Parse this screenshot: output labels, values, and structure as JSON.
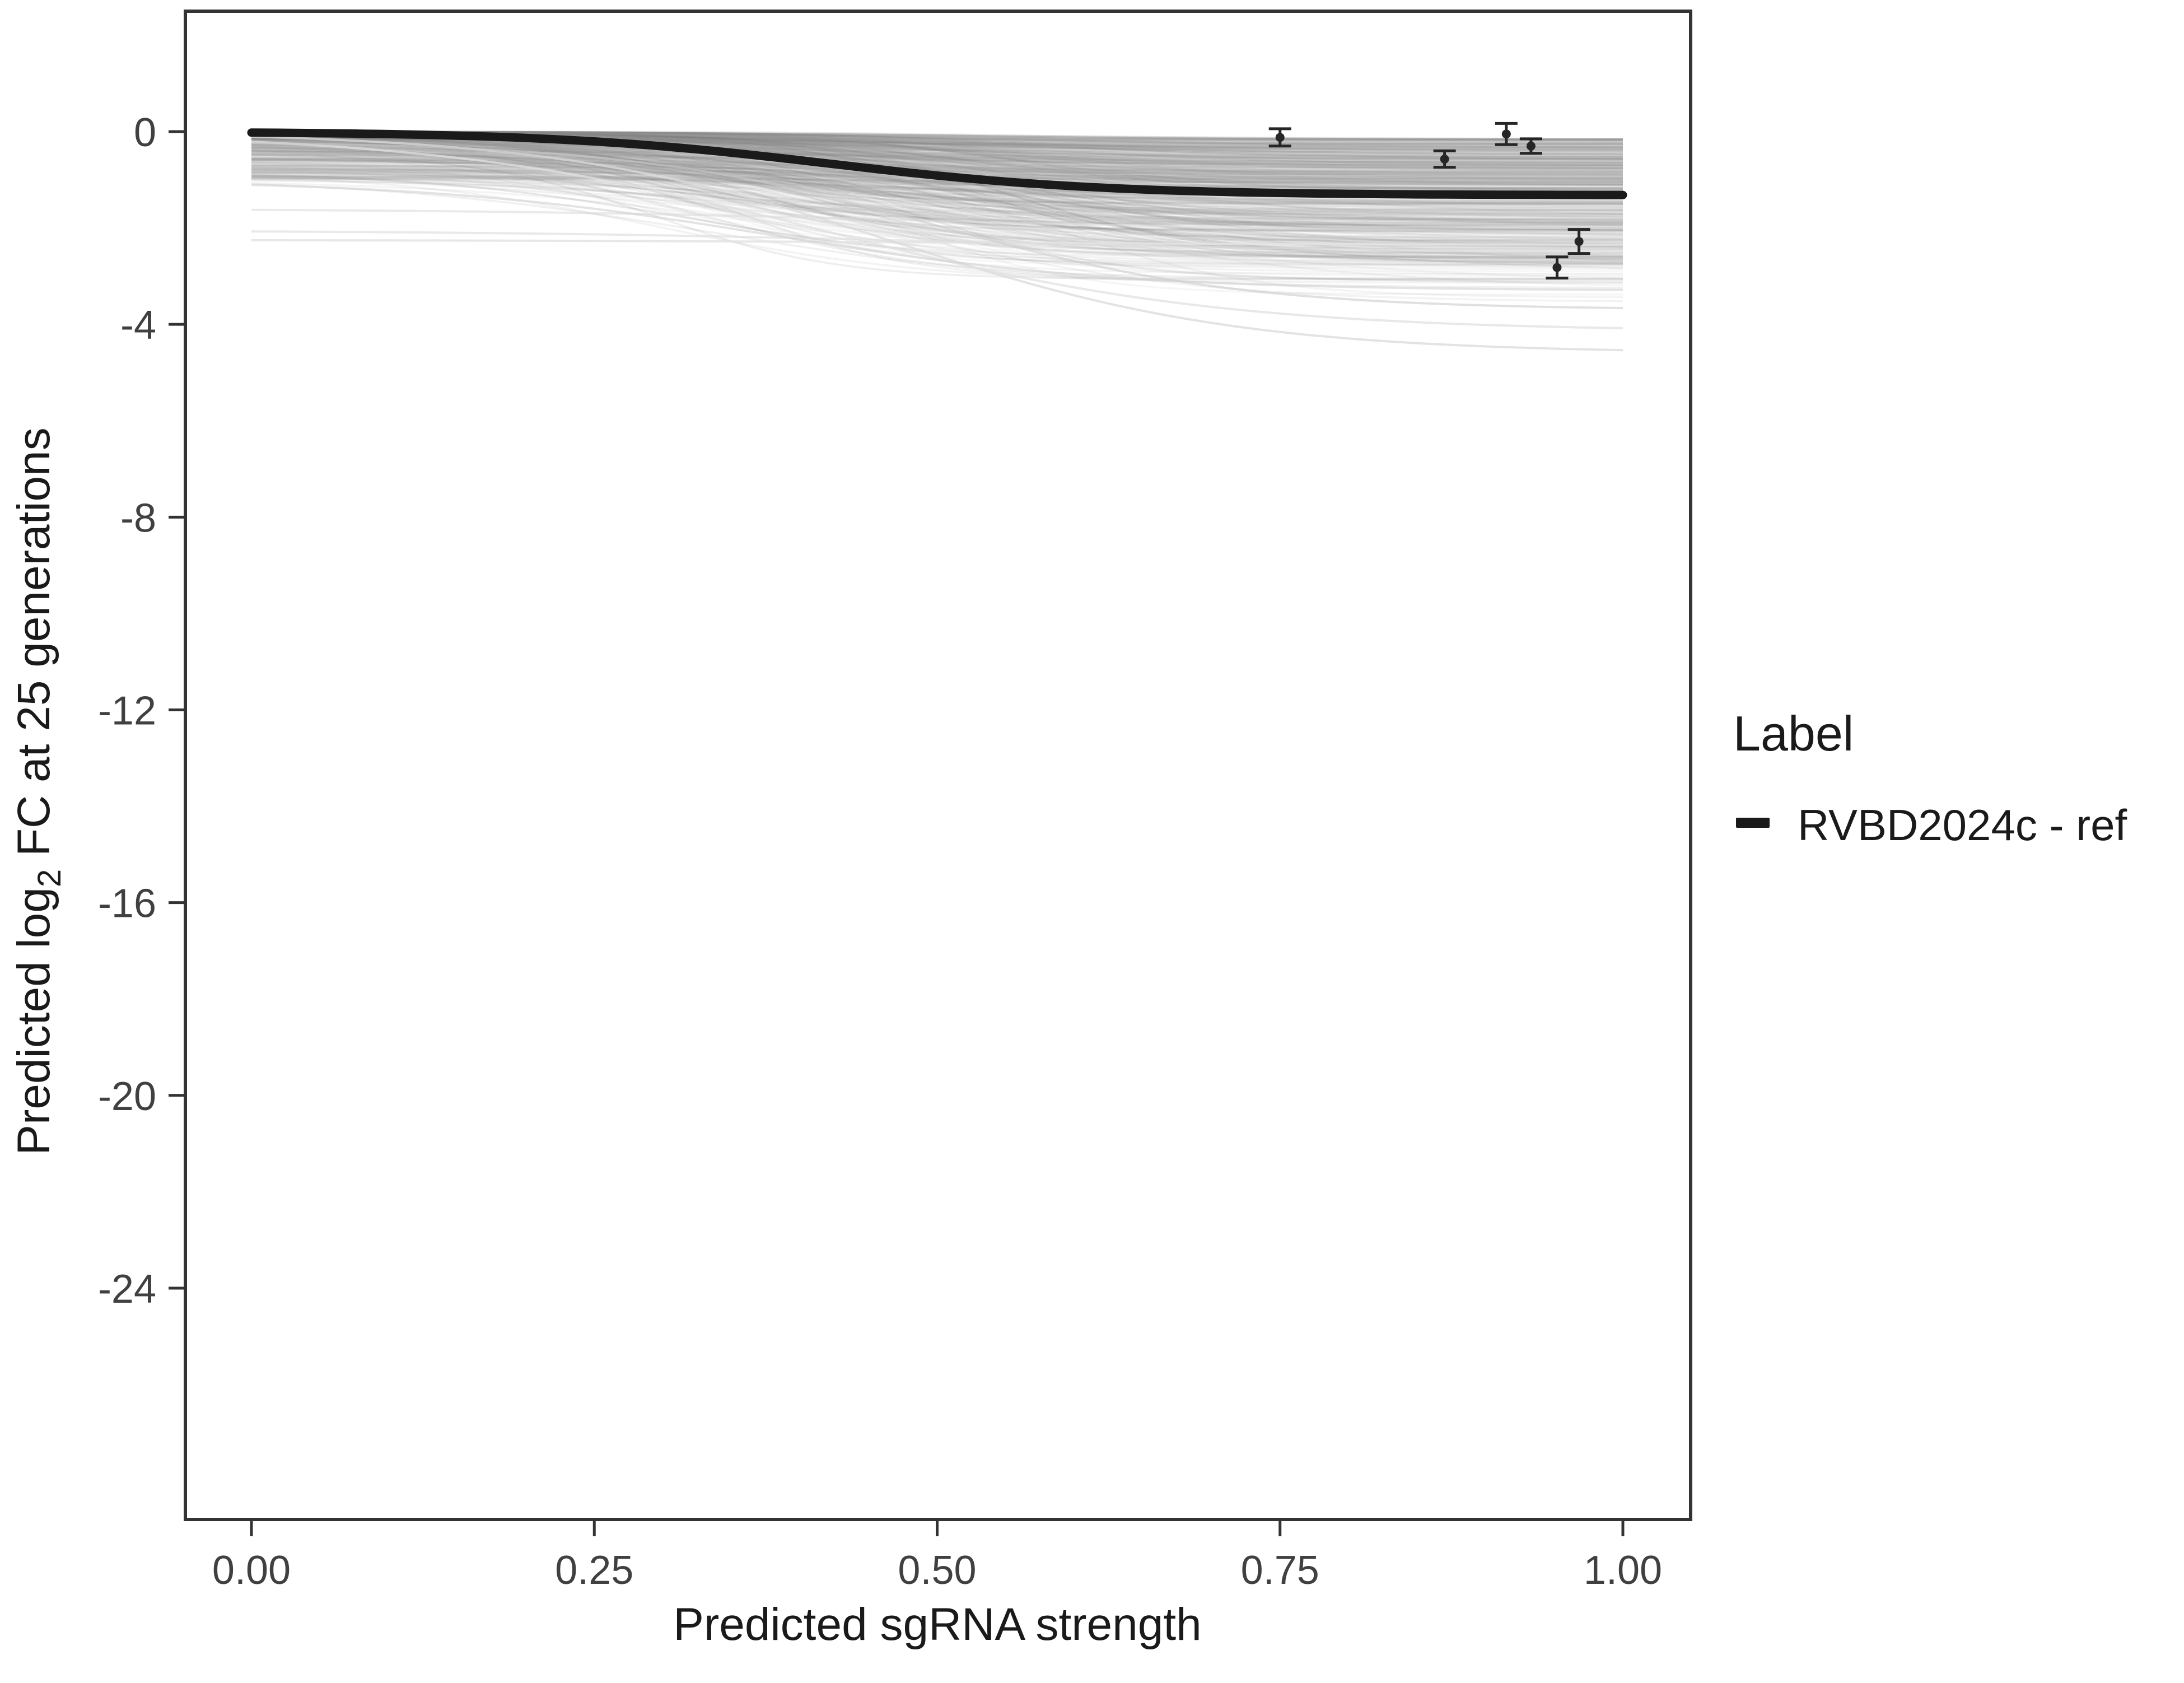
{
  "figure": {
    "background": "#ffffff",
    "panel_border_color": "#333333",
    "tick_color": "#333333",
    "tick_label_color": "#404040",
    "title_color": "#1a1a1a"
  },
  "axes": {
    "x": {
      "title": "Predicted sgRNA strength",
      "ticks": [
        0,
        0.25,
        0.5,
        0.75,
        1.0
      ],
      "tick_labels": [
        "0.00",
        "0.25",
        "0.50",
        "0.75",
        "1.00"
      ],
      "range": [
        0,
        1
      ]
    },
    "y": {
      "title_prefix": "Predicted  log",
      "title_sub": "2",
      "title_suffix": " FC at 25 generations",
      "ticks": [
        0,
        -4,
        -8,
        -12,
        -16,
        -20,
        -24
      ],
      "tick_labels": [
        "0",
        "-4",
        "-8",
        "-12",
        "-16",
        "-20",
        "-24"
      ],
      "range": [
        -28.8,
        2.5
      ]
    }
  },
  "legend": {
    "title": "Label",
    "entries": [
      {
        "label": "RVBD2024c - ref",
        "color": "#1a1a1a"
      }
    ]
  },
  "chart_data": {
    "type": "line",
    "title": "",
    "xlabel": "Predicted sgRNA strength",
    "ylabel": "Predicted log2 FC at 25 generations",
    "xlim": [
      0,
      1
    ],
    "ylim": [
      -28.8,
      2.5
    ],
    "x_ticks": [
      0,
      0.25,
      0.5,
      0.75,
      1.0
    ],
    "y_ticks": [
      0,
      -4,
      -8,
      -12,
      -16,
      -20,
      -24
    ],
    "grid": false,
    "legend_position": "right",
    "series": [
      {
        "name": "RVBD2024c - ref",
        "style": "thick-black-sigmoid",
        "color": "#1a1a1a",
        "sigmoid_params": {
          "baseline": 0.0,
          "plateau": -1.32,
          "midpoint": 0.42,
          "slope": 10
        },
        "sample": {
          "x": [
            0,
            0.25,
            0.5,
            0.75,
            1.0
          ],
          "y": [
            -0.02,
            -0.2,
            -0.91,
            -1.27,
            -1.32
          ]
        }
      }
    ],
    "points": [
      {
        "x": 0.75,
        "y": -0.12,
        "err": 0.18
      },
      {
        "x": 0.87,
        "y": -0.57,
        "err": 0.17
      },
      {
        "x": 0.915,
        "y": -0.05,
        "err": 0.22
      },
      {
        "x": 0.933,
        "y": -0.3,
        "err": 0.15
      },
      {
        "x": 0.952,
        "y": -2.82,
        "err": 0.22
      },
      {
        "x": 0.968,
        "y": -2.28,
        "err": 0.25
      }
    ],
    "point_color": "#262626",
    "ensemble": {
      "description": "many faint gray posterior-draw sigmoid curves forming a band from 0 to about -2, a few light outliers reaching about -4.6",
      "count": 520,
      "color_gray_min": 110,
      "color_gray_max": 180,
      "baseline_max_depth": 1.0,
      "drop_min": 0.15,
      "drop_max": 2.75,
      "midpoint_range": [
        0.28,
        0.6
      ],
      "slope_range": [
        6,
        16
      ],
      "opacity_range": [
        0.05,
        0.14
      ],
      "outliers": [
        {
          "baseline": 0.0,
          "plateau": -4.6,
          "midpoint": 0.47,
          "slope": 8,
          "color": "#d9d9d9",
          "opacity": 0.75
        },
        {
          "baseline": 0.0,
          "plateau": -4.15,
          "midpoint": 0.42,
          "slope": 7,
          "color": "#e0e0e0",
          "opacity": 0.75
        },
        {
          "baseline": -0.2,
          "plateau": -3.7,
          "midpoint": 0.5,
          "slope": 9,
          "color": "#cccccc",
          "opacity": 0.6
        },
        {
          "baseline": -1.0,
          "plateau": -3.3,
          "midpoint": 0.38,
          "slope": 8,
          "color": "#d0d0d0",
          "opacity": 0.6
        }
      ],
      "flat_low_lines": [
        {
          "baseline": -2.25,
          "plateau": -2.35,
          "midpoint": 0.5,
          "slope": 6,
          "color": "#e3e3e3",
          "opacity": 0.85
        },
        {
          "baseline": -2.05,
          "plateau": -2.5,
          "midpoint": 0.5,
          "slope": 6,
          "color": "#dddddd",
          "opacity": 0.65
        },
        {
          "baseline": -1.6,
          "plateau": -2.1,
          "midpoint": 0.5,
          "slope": 6,
          "color": "#d8d8d8",
          "opacity": 0.55
        }
      ]
    }
  }
}
